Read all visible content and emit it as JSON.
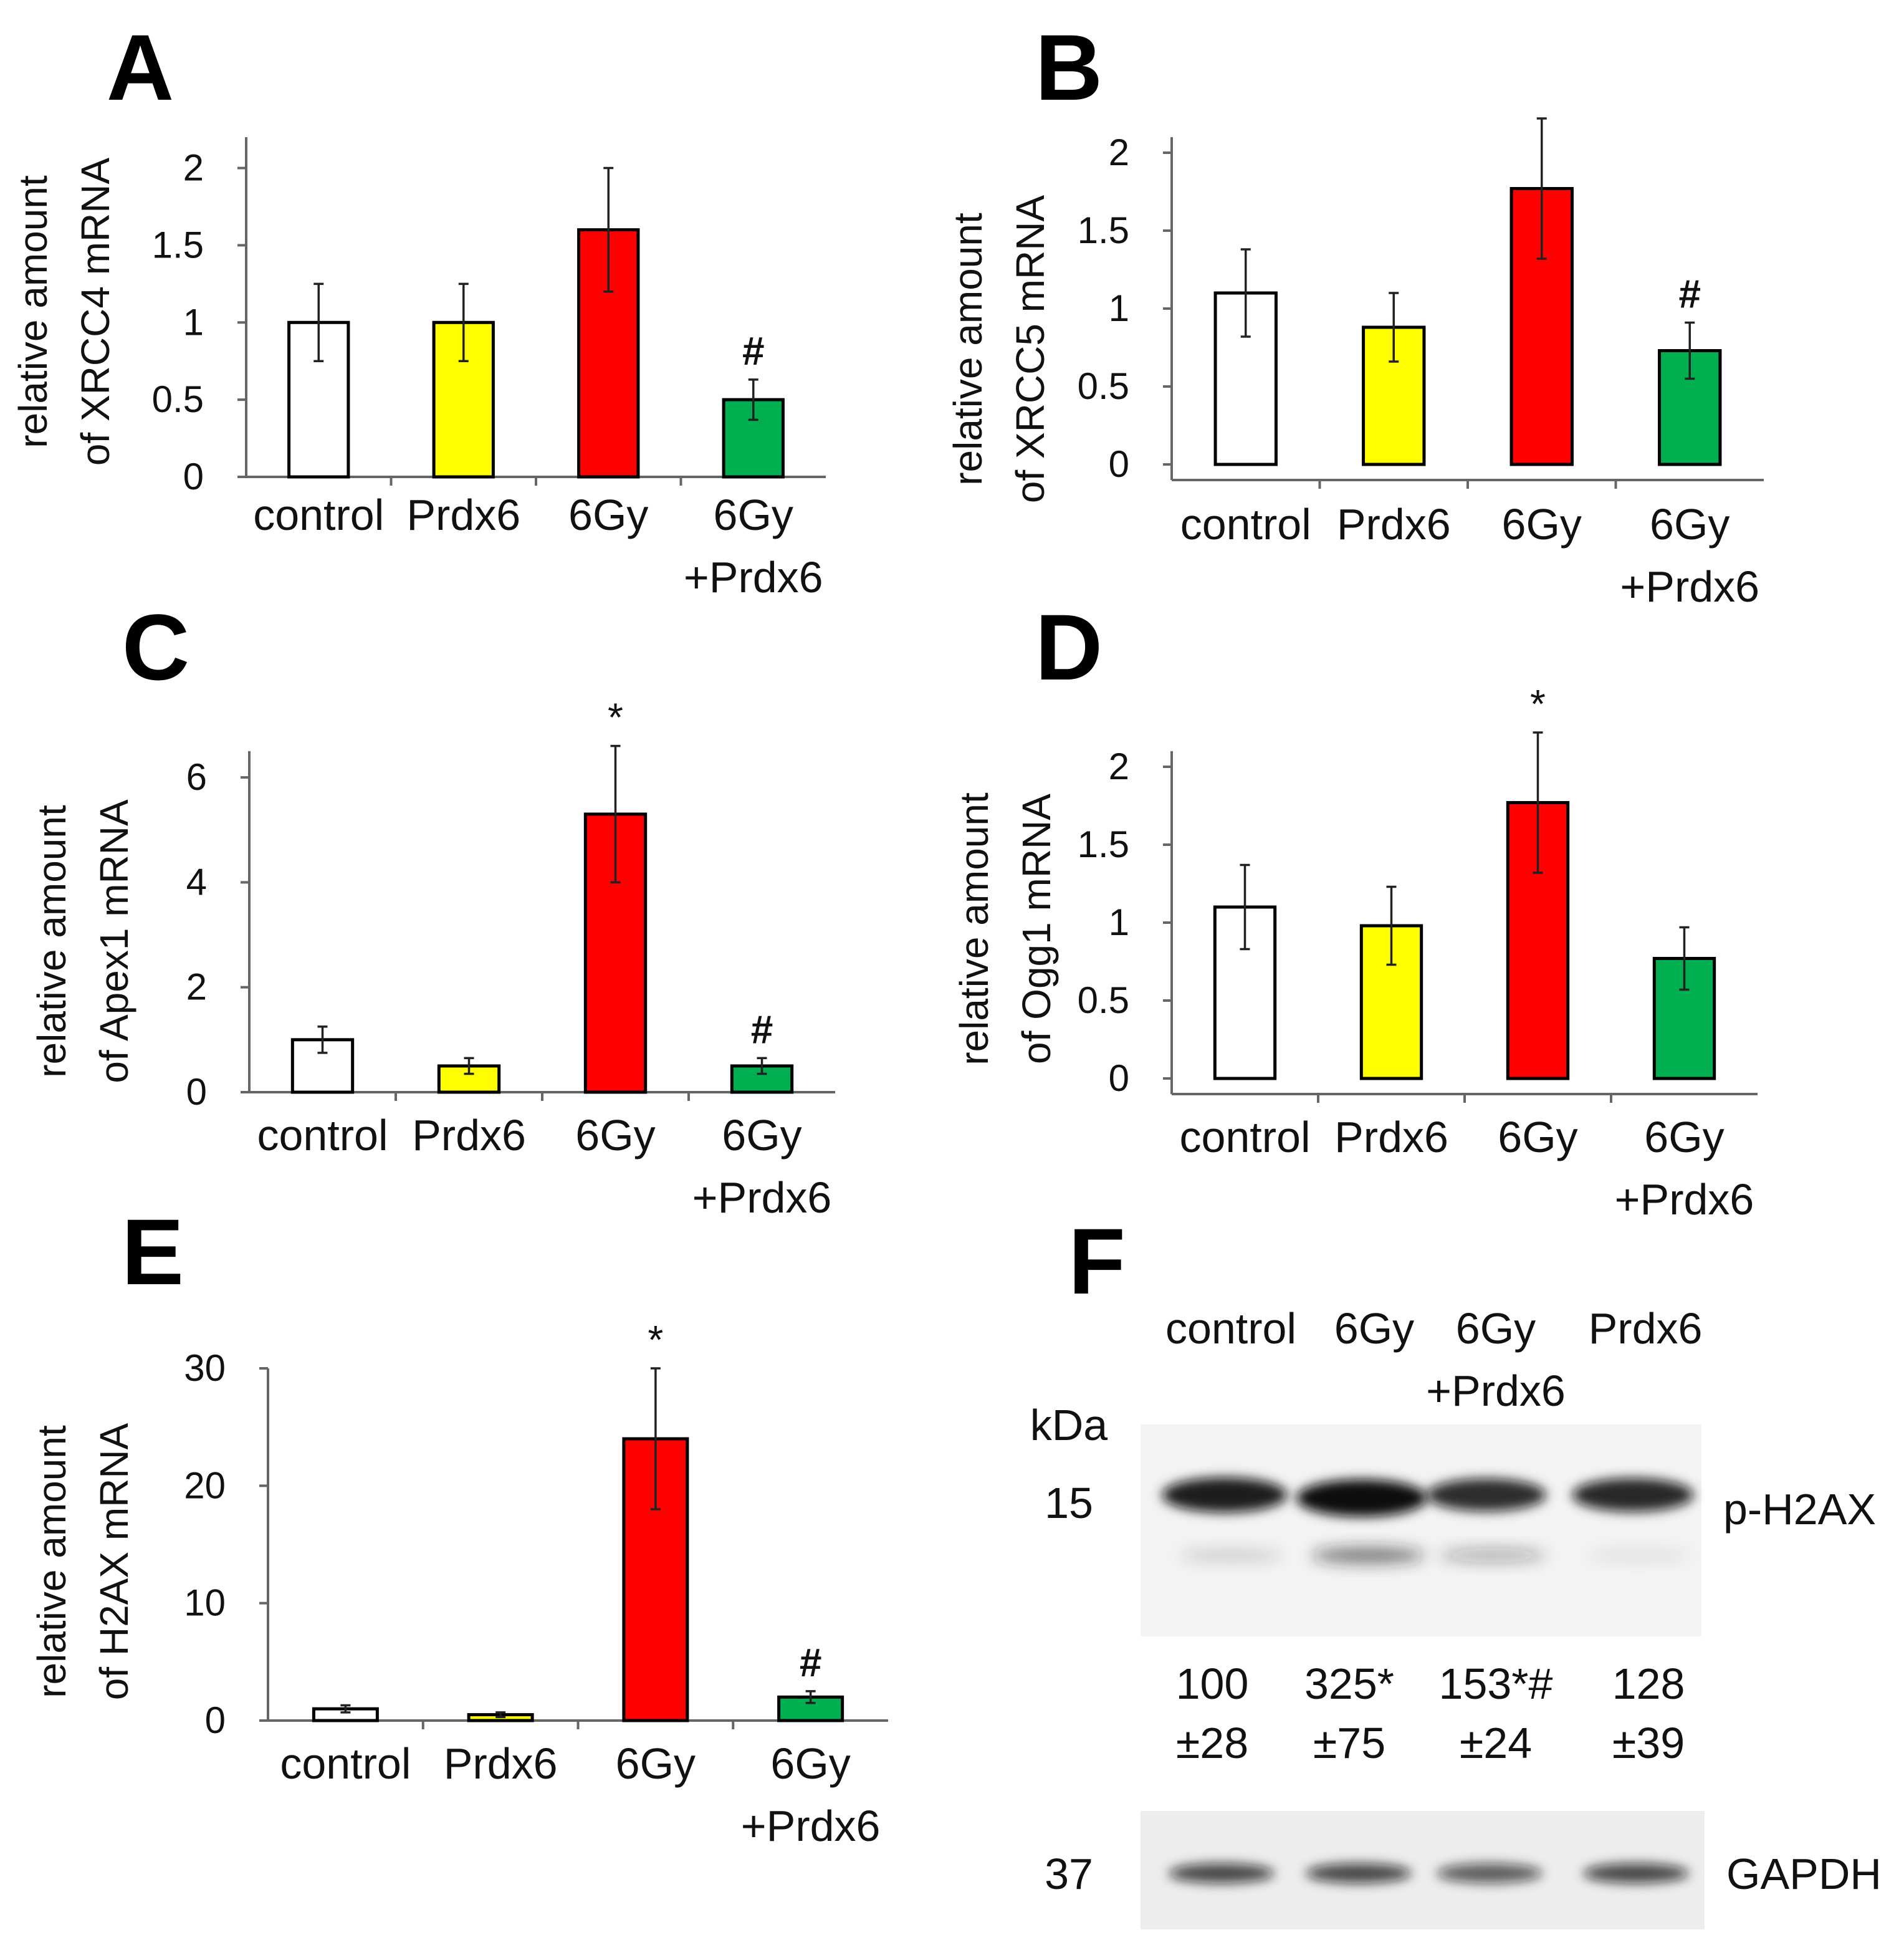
{
  "chart_data": [
    {
      "panel": "A",
      "type": "bar",
      "ylabel": [
        "relative amount",
        "of XRCC4 mRNA"
      ],
      "categories": [
        [
          "control"
        ],
        [
          "Prdx6"
        ],
        [
          "6Gy"
        ],
        [
          "6Gy",
          "+Prdx6"
        ]
      ],
      "values": [
        1.0,
        1.0,
        1.6,
        0.5
      ],
      "errors": [
        0.25,
        0.25,
        0.4,
        0.13
      ],
      "colors": [
        "#ffffff",
        "#ffff00",
        "#ff0000",
        "#00b050"
      ],
      "marks": [
        "",
        "",
        "",
        "#"
      ],
      "ylim": [
        0,
        2.2
      ],
      "yticks": [
        0,
        0.5,
        1,
        1.5,
        2
      ],
      "ytick_labels": [
        "0",
        "0.5",
        "1",
        "1.5",
        "2"
      ]
    },
    {
      "panel": "B",
      "type": "bar",
      "ylabel": [
        "relative amount",
        "of XRCC5 mRNA"
      ],
      "categories": [
        [
          "control"
        ],
        [
          "Prdx6"
        ],
        [
          "6Gy"
        ],
        [
          "6Gy",
          "+Prdx6"
        ]
      ],
      "values": [
        1.1,
        0.88,
        1.77,
        0.73
      ],
      "errors": [
        0.28,
        0.22,
        0.45,
        0.18
      ],
      "colors": [
        "#ffffff",
        "#ffff00",
        "#ff0000",
        "#00b050"
      ],
      "marks": [
        "",
        "",
        "",
        "#"
      ],
      "ylim": [
        -0.1,
        2.1
      ],
      "yticks": [
        0,
        0.5,
        1,
        1.5,
        2
      ],
      "ytick_labels": [
        "0",
        "0.5",
        "1",
        "1.5",
        "2"
      ]
    },
    {
      "panel": "C",
      "type": "bar",
      "ylabel": [
        "relative amount",
        "of Apex1 mRNA"
      ],
      "categories": [
        [
          "control"
        ],
        [
          "Prdx6"
        ],
        [
          "6Gy"
        ],
        [
          "6Gy",
          "+Prdx6"
        ]
      ],
      "values": [
        1.0,
        0.5,
        5.3,
        0.5
      ],
      "errors": [
        0.25,
        0.15,
        1.3,
        0.15
      ],
      "colors": [
        "#ffffff",
        "#ffff00",
        "#ff0000",
        "#00b050"
      ],
      "marks": [
        "",
        "",
        "*",
        "#"
      ],
      "ylim": [
        0,
        6.5
      ],
      "yticks": [
        0,
        2,
        4,
        6
      ],
      "ytick_labels": [
        "0",
        "2",
        "4",
        "6"
      ]
    },
    {
      "panel": "D",
      "type": "bar",
      "ylabel": [
        "relative amount",
        "of Ogg1 mRNA"
      ],
      "categories": [
        [
          "control"
        ],
        [
          "Prdx6"
        ],
        [
          "6Gy"
        ],
        [
          "6Gy",
          "+Prdx6"
        ]
      ],
      "values": [
        1.1,
        0.98,
        1.77,
        0.77
      ],
      "errors": [
        0.27,
        0.25,
        0.45,
        0.2
      ],
      "colors": [
        "#ffffff",
        "#ffff00",
        "#ff0000",
        "#00b050"
      ],
      "marks": [
        "",
        "",
        "*",
        ""
      ],
      "ylim": [
        -0.1,
        2.1
      ],
      "yticks": [
        0,
        0.5,
        1,
        1.5,
        2
      ],
      "ytick_labels": [
        "0",
        "0.5",
        "1",
        "1.5",
        "2"
      ]
    },
    {
      "panel": "E",
      "type": "bar",
      "ylabel": [
        "relative amount",
        "of H2AX mRNA"
      ],
      "categories": [
        [
          "control"
        ],
        [
          "Prdx6"
        ],
        [
          "6Gy"
        ],
        [
          "6Gy",
          "+Prdx6"
        ]
      ],
      "values": [
        1.0,
        0.5,
        24.0,
        2.0
      ],
      "errors": [
        0.3,
        0.2,
        6.0,
        0.5
      ],
      "colors": [
        "#ffffff",
        "#ffff00",
        "#ff0000",
        "#00b050"
      ],
      "marks": [
        "",
        "",
        "*",
        "#"
      ],
      "ylim": [
        0,
        30
      ],
      "yticks": [
        0,
        10,
        20,
        30
      ],
      "ytick_labels": [
        "0",
        "10",
        "20",
        "30"
      ]
    }
  ],
  "blot": {
    "panel": "F",
    "lanes": [
      [
        "control"
      ],
      [
        "6Gy"
      ],
      [
        "6Gy",
        "+Prdx6"
      ],
      [
        "Prdx6"
      ]
    ],
    "kda_label": "kDa",
    "markers": [
      "15",
      "37"
    ],
    "bands": [
      "p-H2AX",
      "GAPDH"
    ],
    "quant_values": [
      "100",
      "325*",
      "153*#",
      "128"
    ],
    "quant_errors": [
      "±28",
      "±75",
      "±24",
      "±39"
    ],
    "band_intensity": {
      "p-H2AX": [
        0.85,
        1.0,
        0.7,
        0.75
      ],
      "p-H2AX-lower": [
        0.15,
        0.55,
        0.3,
        0.08
      ],
      "GAPDH": [
        0.75,
        0.75,
        0.65,
        0.75
      ]
    }
  }
}
